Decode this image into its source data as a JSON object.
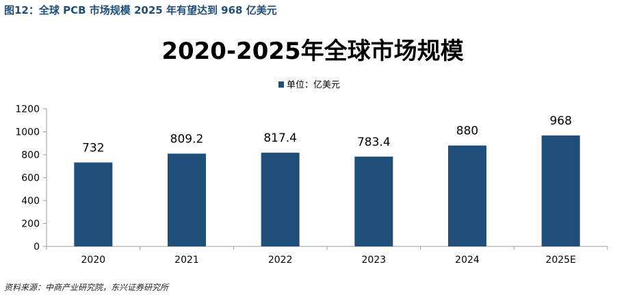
{
  "figure": {
    "caption": "图12：全球 PCB 市场规模 2025 年有望达到 968 亿美元",
    "source": "资料来源：中商产业研究院，东兴证券研究所"
  },
  "chart_data": {
    "type": "bar",
    "title": "2020-2025年全球市场规模",
    "categories": [
      "2020",
      "2021",
      "2022",
      "2023",
      "2024",
      "2025E"
    ],
    "series": [
      {
        "name": "单位：亿美元",
        "values": [
          732,
          809.2,
          817.4,
          783.4,
          880,
          968
        ],
        "labels": [
          "732",
          "809.2",
          "817.4",
          "783.4",
          "880",
          "968"
        ],
        "color": "#1f4e79"
      }
    ],
    "ylim": [
      0,
      1200
    ],
    "yticks": [
      "0",
      "200",
      "400",
      "600",
      "800",
      "1000",
      "1200"
    ],
    "xlabel": "",
    "ylabel": "",
    "legend": "top-center",
    "grid": false
  }
}
